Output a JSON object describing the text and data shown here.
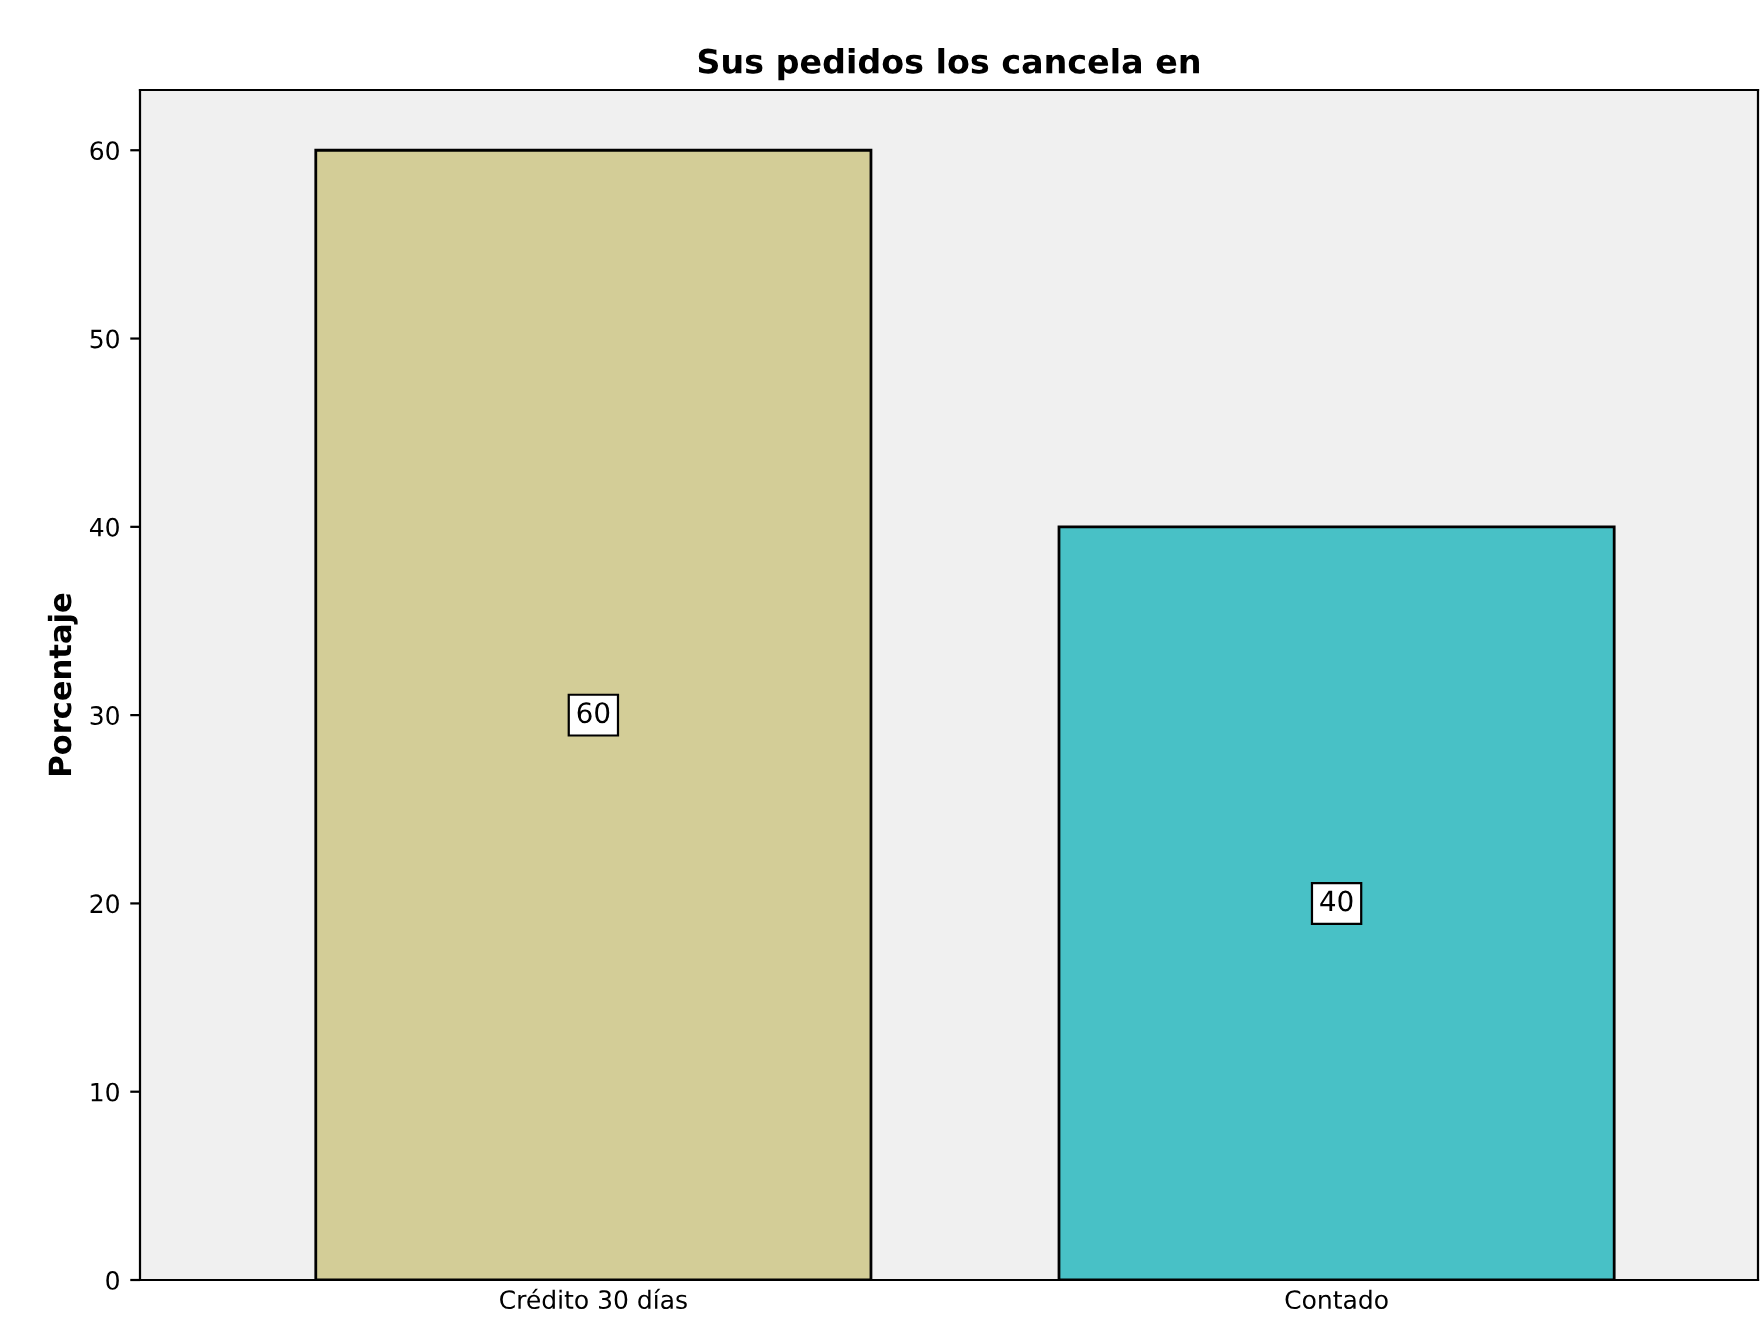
{
  "chart_data": {
    "type": "bar",
    "title": "Sus pedidos los cancela en",
    "ylabel": "Porcentaje",
    "categories": [
      "Crédito 30 días",
      "Contado"
    ],
    "values": [
      60,
      40
    ],
    "colors": [
      "#d3cd97",
      "#48c1c6"
    ],
    "ylim": [
      0,
      63.2
    ],
    "yticks": [
      0,
      10,
      20,
      30,
      40,
      50,
      60
    ],
    "grid": false,
    "data_labels": true
  }
}
